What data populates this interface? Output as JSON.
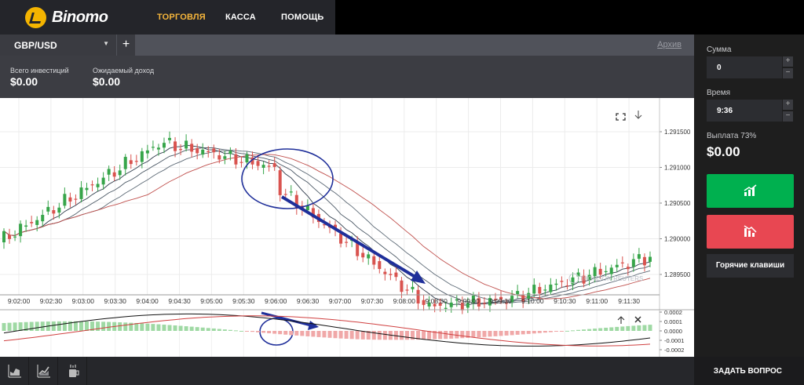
{
  "brand": {
    "name": "Binomo"
  },
  "nav": {
    "trade": "ТОРГОВЛЯ",
    "cash": "КАССА",
    "help": "ПОМОЩЬ"
  },
  "tabs": {
    "pair": "GBP/USD",
    "add": "+",
    "archive": "Архив"
  },
  "stats": {
    "total_label": "Всего инвестиций",
    "total_value": "$0.00",
    "expected_label": "Ожидаемый доход",
    "expected_value": "$0.00"
  },
  "panel": {
    "amount_label": "Сумма",
    "amount_value": "0",
    "time_label": "Время",
    "time_value": "9:36",
    "payout_label": "Выплата 73%",
    "payout_value": "$0.00",
    "hotkeys": "Горячие клавиши",
    "plus": "+",
    "minus": "−"
  },
  "bottom": {
    "ask": "ЗАДАТЬ ВОПРОС"
  },
  "chart": {
    "watermark": "THOMSON REUTERS",
    "price_ticks": [
      "1.291500",
      "1.291000",
      "1.290500",
      "1.290000",
      "1.289500"
    ],
    "time_ticks": [
      "9:02:00",
      "9:02:30",
      "9:03:00",
      "9:03:30",
      "9:04:00",
      "9:04:30",
      "9:05:00",
      "9:05:30",
      "9:06:00",
      "9:06:30",
      "9:07:00",
      "9:07:30",
      "9:08:00",
      "9:08:30",
      "9:09:00",
      "9:09:30",
      "9:10:00",
      "9:10:30",
      "9:11:00",
      "9:11:30"
    ],
    "osc_ticks": [
      "0.0002",
      "0.0001",
      "0.0000",
      "-0.0001",
      "-0.0002"
    ],
    "colors": {
      "up": "#37a54a",
      "down": "#d9534f",
      "annotation": "#1f2f9a"
    }
  },
  "icons": {
    "expand": "expand-icon",
    "download": "arrow-down-icon",
    "osc_up": "arrow-up-icon",
    "osc_close": "close-icon",
    "chart_area": "area-chart-icon",
    "chart_line": "line-chart-icon",
    "indicators": "indicators-icon"
  }
}
